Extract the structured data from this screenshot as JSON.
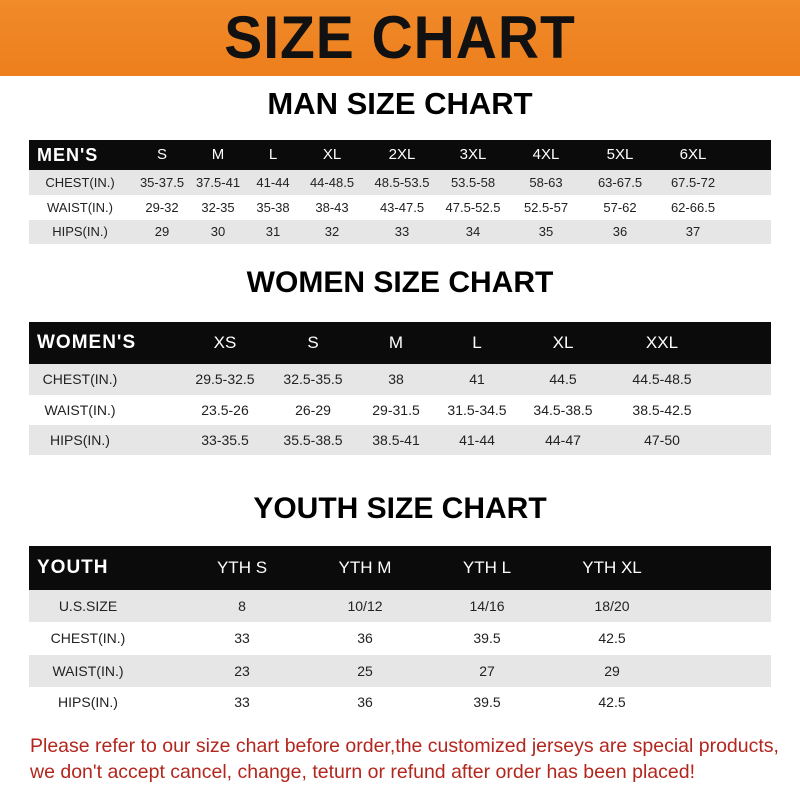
{
  "banner_title": "SIZE CHART",
  "men": {
    "title": "MAN SIZE CHART",
    "header": [
      "MEN'S",
      "S",
      "M",
      "L",
      "XL",
      "2XL",
      "3XL",
      "4XL",
      "5XL",
      "6XL"
    ],
    "rows": [
      [
        "CHEST(IN.)",
        "35-37.5",
        "37.5-41",
        "41-44",
        "44-48.5",
        "48.5-53.5",
        "53.5-58",
        "58-63",
        "63-67.5",
        "67.5-72"
      ],
      [
        "WAIST(IN.)",
        "29-32",
        "32-35",
        "35-38",
        "38-43",
        "43-47.5",
        "47.5-52.5",
        "52.5-57",
        "57-62",
        "62-66.5"
      ],
      [
        "HIPS(IN.)",
        "29",
        "30",
        "31",
        "32",
        "33",
        "34",
        "35",
        "36",
        "37"
      ]
    ]
  },
  "women": {
    "title": "WOMEN SIZE CHART",
    "header": [
      "WOMEN'S",
      "XS",
      "S",
      "M",
      "L",
      "XL",
      "XXL"
    ],
    "rows": [
      [
        "CHEST(IN.)",
        "29.5-32.5",
        "32.5-35.5",
        "38",
        "41",
        "44.5",
        "44.5-48.5"
      ],
      [
        "WAIST(IN.)",
        "23.5-26",
        "26-29",
        "29-31.5",
        "31.5-34.5",
        "34.5-38.5",
        "38.5-42.5"
      ],
      [
        "HIPS(IN.)",
        "33-35.5",
        "35.5-38.5",
        "38.5-41",
        "41-44",
        "44-47",
        "47-50"
      ]
    ]
  },
  "youth": {
    "title": "YOUTH SIZE CHART",
    "header": [
      "YOUTH",
      "YTH S",
      "YTH M",
      "YTH L",
      "YTH XL"
    ],
    "rows": [
      [
        "U.S.SIZE",
        "8",
        "10/12",
        "14/16",
        "18/20"
      ],
      [
        "CHEST(IN.)",
        "33",
        "36",
        "39.5",
        "42.5"
      ],
      [
        "WAIST(IN.)",
        "23",
        "25",
        "27",
        "29"
      ],
      [
        "HIPS(IN.)",
        "33",
        "36",
        "39.5",
        "42.5"
      ]
    ]
  },
  "footer": {
    "line1": "Please refer to our size chart before order,the customized jerseys are special products,",
    "line2": "we don't accept cancel, change, teturn or refund after order has been placed!"
  },
  "colors": {
    "banner": "#ee7f1c",
    "header_bar": "#0b0b0b",
    "row_gray": "#e6e6e6",
    "notice": "#b3261e"
  }
}
